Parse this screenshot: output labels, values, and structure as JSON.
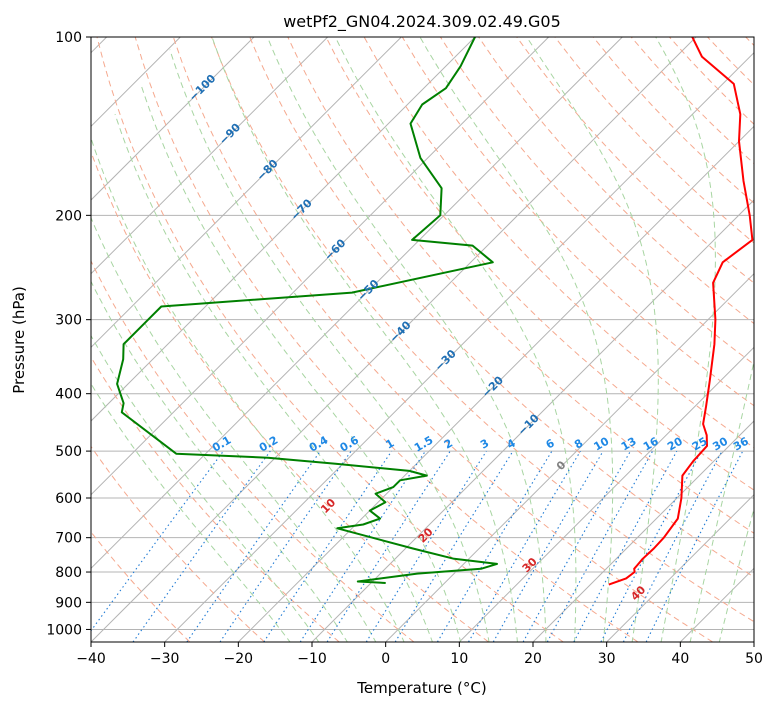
{
  "chart_data": {
    "type": "line",
    "title": "wetPf2_GN04.2024.309.02.49.G05",
    "xlabel": "Temperature (°C)",
    "ylabel": "Pressure (hPa)",
    "xlim": [
      -40,
      50
    ],
    "ylim": [
      1050,
      100
    ],
    "y_scale": "log",
    "skew_deg_per_decade": 90,
    "x_ticks": [
      -40,
      -30,
      -20,
      -10,
      0,
      10,
      20,
      30,
      40,
      50
    ],
    "x_tick_labels": [
      "−40",
      "−30",
      "−20",
      "−10",
      "0",
      "10",
      "20",
      "30",
      "40",
      "50"
    ],
    "y_ticks": [
      100,
      200,
      300,
      400,
      500,
      600,
      700,
      800,
      900,
      1000
    ],
    "y_tick_labels": [
      "100",
      "200",
      "300",
      "400",
      "500",
      "600",
      "700",
      "800",
      "900",
      "1000"
    ],
    "grid": true,
    "colors": {
      "temperature": "#ff0000",
      "dewpoint": "#008000",
      "isotherm": "#b4b4b4",
      "dry_adiabat": "#f5a98f",
      "moist_adiabat": "#a8d5a2",
      "mixing_ratio": "#1f7ad4",
      "dry_adiabat_label": "#d62728",
      "isotherm_label": "#1f6fb4",
      "mixing_label": "#1e88e5",
      "zero_label": "#808080"
    },
    "series": [
      {
        "role": "temperature",
        "points": [
          [
            22.5,
            840
          ],
          [
            24.0,
            820
          ],
          [
            24.3,
            800
          ],
          [
            23.8,
            790
          ],
          [
            23.6,
            760
          ],
          [
            23.7,
            730
          ],
          [
            23.6,
            700
          ],
          [
            22.9,
            650
          ],
          [
            20.6,
            600
          ],
          [
            17.7,
            550
          ],
          [
            17.2,
            520
          ],
          [
            17.0,
            490
          ],
          [
            15.5,
            470
          ],
          [
            13.5,
            450
          ],
          [
            11.5,
            420
          ],
          [
            8.5,
            380
          ],
          [
            4.2,
            330
          ],
          [
            1.0,
            300
          ],
          [
            -4.3,
            260
          ],
          [
            -5.8,
            240
          ],
          [
            -4.8,
            220
          ],
          [
            -8.5,
            200
          ],
          [
            -14.0,
            175
          ],
          [
            -20.0,
            150
          ],
          [
            -23.5,
            135
          ],
          [
            -28.5,
            120
          ],
          [
            -36.5,
            108
          ],
          [
            -40.5,
            100
          ]
        ]
      },
      {
        "role": "dewpoint",
        "points": [
          [
            -8.0,
            835
          ],
          [
            -12.0,
            830
          ],
          [
            -5.0,
            805
          ],
          [
            3.0,
            790
          ],
          [
            4.5,
            775
          ],
          [
            -2.0,
            760
          ],
          [
            -9.0,
            730
          ],
          [
            -22.0,
            675
          ],
          [
            -19.0,
            665
          ],
          [
            -17.5,
            650
          ],
          [
            -20.0,
            630
          ],
          [
            -19.0,
            610
          ],
          [
            -21.5,
            590
          ],
          [
            -20.0,
            575
          ],
          [
            -20.0,
            560
          ],
          [
            -17.0,
            550
          ],
          [
            -20.0,
            540
          ],
          [
            -31.0,
            525
          ],
          [
            -41.0,
            513
          ],
          [
            -54.0,
            505
          ],
          [
            -67.0,
            430
          ],
          [
            -68.0,
            415
          ],
          [
            -71.5,
            385
          ],
          [
            -74.0,
            350
          ],
          [
            -76.0,
            330
          ],
          [
            -76.0,
            300
          ],
          [
            -76.0,
            285
          ],
          [
            -52.0,
            270
          ],
          [
            -37.0,
            240
          ],
          [
            -42.0,
            225
          ],
          [
            -51.0,
            220
          ],
          [
            -50.5,
            200
          ],
          [
            -54.0,
            180
          ],
          [
            -61.0,
            160
          ],
          [
            -67.0,
            140
          ],
          [
            -68.0,
            130
          ],
          [
            -67.0,
            122
          ],
          [
            -68.0,
            112
          ],
          [
            -70.0,
            100
          ]
        ]
      }
    ],
    "isotherm_labels": [
      "−100",
      "−90",
      "−80",
      "−70",
      "−60",
      "−50",
      "−40",
      "−30",
      "−20",
      "−10"
    ],
    "isotherm_label_values": [
      -100,
      -90,
      -80,
      -70,
      -60,
      -50,
      -40,
      -30,
      -20,
      -10
    ],
    "zero_isotherm_label": "0",
    "mixing_ratio_labels": [
      "0.1",
      "0.2",
      "0.4",
      "0.6",
      "1",
      "1.5",
      "2",
      "3",
      "4",
      "6",
      "8",
      "10",
      "13",
      "16",
      "20",
      "25",
      "30",
      "36"
    ],
    "mixing_ratio_values": [
      0.1,
      0.2,
      0.4,
      0.6,
      1,
      1.5,
      2,
      3,
      4,
      6,
      8,
      10,
      13,
      16,
      20,
      25,
      30,
      36
    ],
    "dry_adiabat_labels": [
      "10",
      "20",
      "30",
      "40"
    ],
    "dry_adiabat_label_values": [
      10,
      20,
      30,
      40
    ]
  }
}
